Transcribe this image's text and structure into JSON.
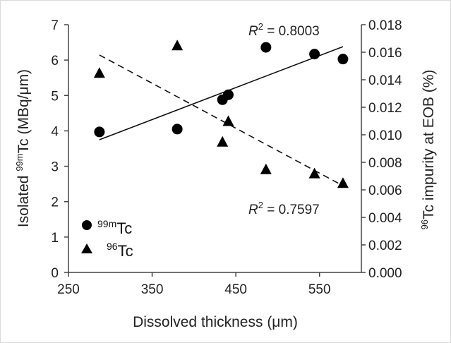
{
  "chart_data": {
    "type": "scatter",
    "xlabel": "Dissolved thickness (μm)",
    "ylabel_left": {
      "prefix": "Isolated ",
      "sup": "99m",
      "suffix": "Tc (MBq/μm)"
    },
    "ylabel_right": {
      "prefix": "",
      "sup": "96",
      "suffix": "Tc impurity at EOB (%)"
    },
    "xlim": [
      250,
      600
    ],
    "x_ticks": [
      "250",
      "350",
      "450",
      "550"
    ],
    "x_tick_values": [
      250,
      350,
      450,
      550
    ],
    "ylim_left": [
      0,
      7
    ],
    "y_ticks_left": [
      "0",
      "1",
      "2",
      "3",
      "4",
      "5",
      "6",
      "7"
    ],
    "ylim_right": [
      0,
      0.018
    ],
    "y_ticks_right": [
      "0.000",
      "0.002",
      "0.004",
      "0.006",
      "0.008",
      "0.010",
      "0.012",
      "0.014",
      "0.016",
      "0.018"
    ],
    "series": [
      {
        "name": "Tc",
        "sup": "99m",
        "marker": "circle",
        "axis": "left",
        "x": [
          287,
          380,
          434,
          441,
          486,
          544,
          578
        ],
        "y": [
          3.97,
          4.05,
          4.88,
          5.02,
          6.36,
          6.17,
          6.03
        ],
        "trend": {
          "style": "solid",
          "x": [
            287,
            578
          ],
          "y": [
            3.75,
            6.38
          ]
        }
      },
      {
        "name": "Tc",
        "sup": "96",
        "marker": "triangle",
        "axis": "right",
        "x": [
          287,
          380,
          434,
          441,
          486,
          544,
          578
        ],
        "y": [
          0.0145,
          0.0165,
          0.0095,
          0.011,
          0.0075,
          0.0072,
          0.0065
        ],
        "trend": {
          "style": "dashed",
          "x": [
            287,
            578
          ],
          "y": [
            0.0158,
            0.0063
          ]
        }
      }
    ],
    "annotations": [
      {
        "text": "R",
        "sup": "2",
        "rest": " = 0.8003"
      },
      {
        "text": "R",
        "sup": "2",
        "rest": " = 0.7597"
      }
    ],
    "legend_position": "bottom-left",
    "grid": false
  }
}
